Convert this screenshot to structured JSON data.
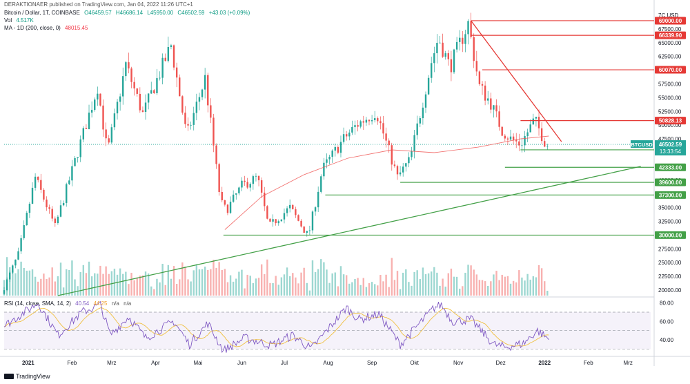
{
  "header": {
    "publisher": "DERAKTIONAER published on TradingView.com, Jan 04, 2022 11:26 UTC+1",
    "symbol_line": "Bitcoin / Dollar, 1T, COINBASE",
    "open": "O46459.57",
    "high": "H46686.14",
    "low": "L45950.00",
    "close": "C46502.59",
    "change": "+43.03 (+0.09%)",
    "vol_label": "Vol",
    "vol_value": "4.517K",
    "ma_label": "MA - 1D (200, close, 0)",
    "ma_value": "48015.45",
    "rsi_label": "RSI (14, close, SMA, 14, 2)",
    "rsi_value": "40.54",
    "rsi_sma": "44.25",
    "rsi_na1": "n/a",
    "rsi_na2": "n/a"
  },
  "footer": {
    "brand": "TradingView"
  },
  "colors": {
    "up": "#26a69a",
    "down": "#ef5350",
    "ma": "#ef5350",
    "resistance": "#e53935",
    "support": "#43a047",
    "rsi": "#7e57c2",
    "rsi_sma": "#f0c040"
  },
  "chart_data": {
    "type": "candlestick",
    "currency_label": "USD",
    "y_ticks": [
      20000,
      22500,
      25000,
      27500,
      30000,
      32500,
      35000,
      37500,
      40000,
      42500,
      45000,
      47500,
      50000,
      52500,
      55000,
      57500,
      60000,
      62500,
      65000,
      67500,
      70000
    ],
    "ylim": [
      19000,
      70000
    ],
    "x_ticks": [
      "2021",
      "Feb",
      "Mrz",
      "Apr",
      "Mai",
      "Jun",
      "Jul",
      "Aug",
      "Sep",
      "Okt",
      "Nov",
      "Dez",
      "2022",
      "Feb",
      "Mrz"
    ],
    "x_tick_dates": [
      "2021-01-01",
      "2021-02-01",
      "2021-03-01",
      "2021-04-01",
      "2021-05-01",
      "2021-06-01",
      "2021-07-01",
      "2021-08-01",
      "2021-09-01",
      "2021-10-01",
      "2021-11-01",
      "2021-12-01",
      "2022-01-01",
      "2022-02-01",
      "2022-03-01"
    ],
    "price_path": [
      {
        "date": "2020-12-15",
        "price": 19300
      },
      {
        "date": "2020-12-27",
        "price": 26500
      },
      {
        "date": "2021-01-08",
        "price": 40500
      },
      {
        "date": "2021-01-22",
        "price": 31500
      },
      {
        "date": "2021-02-08",
        "price": 46000
      },
      {
        "date": "2021-02-21",
        "price": 57000
      },
      {
        "date": "2021-02-28",
        "price": 45000
      },
      {
        "date": "2021-03-13",
        "price": 61000
      },
      {
        "date": "2021-03-25",
        "price": 52000
      },
      {
        "date": "2021-04-14",
        "price": 64500
      },
      {
        "date": "2021-04-25",
        "price": 48000
      },
      {
        "date": "2021-05-08",
        "price": 58500
      },
      {
        "date": "2021-05-19",
        "price": 36000
      },
      {
        "date": "2021-05-23",
        "price": 34500
      },
      {
        "date": "2021-06-03",
        "price": 39000
      },
      {
        "date": "2021-06-14",
        "price": 40500
      },
      {
        "date": "2021-06-22",
        "price": 31500
      },
      {
        "date": "2021-07-07",
        "price": 35000
      },
      {
        "date": "2021-07-20",
        "price": 29800
      },
      {
        "date": "2021-07-30",
        "price": 42000
      },
      {
        "date": "2021-08-14",
        "price": 47500
      },
      {
        "date": "2021-08-23",
        "price": 50000
      },
      {
        "date": "2021-09-06",
        "price": 52500
      },
      {
        "date": "2021-09-21",
        "price": 40500
      },
      {
        "date": "2021-09-30",
        "price": 43800
      },
      {
        "date": "2021-10-15",
        "price": 61500
      },
      {
        "date": "2021-10-20",
        "price": 66000
      },
      {
        "date": "2021-10-28",
        "price": 60500
      },
      {
        "date": "2021-11-10",
        "price": 68500
      },
      {
        "date": "2021-11-18",
        "price": 57000
      },
      {
        "date": "2021-11-26",
        "price": 54000
      },
      {
        "date": "2021-12-04",
        "price": 49000
      },
      {
        "date": "2021-12-10",
        "price": 47500
      },
      {
        "date": "2021-12-17",
        "price": 46500
      },
      {
        "date": "2021-12-27",
        "price": 51000
      },
      {
        "date": "2022-01-04",
        "price": 46500
      }
    ],
    "last_price": {
      "symbol": "BTCUSD",
      "value": "46502.59",
      "countdown": "13:33:54"
    },
    "moving_average_200": [
      {
        "date": "2021-05-20",
        "price": 31000
      },
      {
        "date": "2021-06-15",
        "price": 37000
      },
      {
        "date": "2021-07-15",
        "price": 41000
      },
      {
        "date": "2021-08-15",
        "price": 44000
      },
      {
        "date": "2021-09-15",
        "price": 45500
      },
      {
        "date": "2021-10-15",
        "price": 45000
      },
      {
        "date": "2021-11-15",
        "price": 46000
      },
      {
        "date": "2021-12-15",
        "price": 47500
      },
      {
        "date": "2022-01-04",
        "price": 48015
      }
    ],
    "horizontal_levels": [
      {
        "value": "69000.00",
        "price": 69000,
        "kind": "resistance",
        "start": "2021-11-10"
      },
      {
        "value": "66339.90",
        "price": 66339.9,
        "kind": "resistance",
        "start": "2021-11-10"
      },
      {
        "value": "60070.00",
        "price": 60070,
        "kind": "resistance",
        "start": "2021-11-18"
      },
      {
        "value": "50828.13",
        "price": 50828.13,
        "kind": "resistance",
        "start": "2021-12-15"
      },
      {
        "value": "45515.72",
        "price": 45515.72,
        "kind": "support",
        "start": "2021-12-15"
      },
      {
        "value": "42333.00",
        "price": 42333,
        "kind": "support",
        "start": "2021-12-04"
      },
      {
        "value": "39600.00",
        "price": 39600,
        "kind": "support",
        "start": "2021-09-21"
      },
      {
        "value": "37300.00",
        "price": 37300,
        "kind": "support",
        "start": "2021-07-30"
      },
      {
        "value": "30000.00",
        "price": 30000,
        "kind": "support",
        "start": "2021-05-19"
      }
    ],
    "trendlines": [
      {
        "kind": "resistance",
        "from": {
          "date": "2021-11-10",
          "price": 69000
        },
        "to": {
          "date": "2022-01-13",
          "price": 47000
        }
      },
      {
        "kind": "support",
        "from": {
          "date": "2021-01-22",
          "price": 19000
        },
        "to": {
          "date": "2022-03-10",
          "price": 42500
        }
      }
    ],
    "rsi": {
      "y_ticks": [
        40,
        60,
        80
      ],
      "ylim": [
        25,
        85
      ],
      "upper_band": 70,
      "lower_band": 30,
      "path": [
        {
          "date": "2020-12-15",
          "v": 55
        },
        {
          "date": "2021-01-08",
          "v": 80
        },
        {
          "date": "2021-01-22",
          "v": 45
        },
        {
          "date": "2021-02-08",
          "v": 70
        },
        {
          "date": "2021-02-21",
          "v": 78
        },
        {
          "date": "2021-02-28",
          "v": 45
        },
        {
          "date": "2021-03-13",
          "v": 65
        },
        {
          "date": "2021-03-25",
          "v": 42
        },
        {
          "date": "2021-04-14",
          "v": 60
        },
        {
          "date": "2021-04-25",
          "v": 35
        },
        {
          "date": "2021-05-08",
          "v": 58
        },
        {
          "date": "2021-05-19",
          "v": 28
        },
        {
          "date": "2021-06-03",
          "v": 42
        },
        {
          "date": "2021-06-22",
          "v": 34
        },
        {
          "date": "2021-07-07",
          "v": 45
        },
        {
          "date": "2021-07-20",
          "v": 30
        },
        {
          "date": "2021-08-14",
          "v": 75
        },
        {
          "date": "2021-08-23",
          "v": 62
        },
        {
          "date": "2021-09-06",
          "v": 68
        },
        {
          "date": "2021-09-21",
          "v": 35
        },
        {
          "date": "2021-10-15",
          "v": 75
        },
        {
          "date": "2021-10-20",
          "v": 78
        },
        {
          "date": "2021-10-28",
          "v": 60
        },
        {
          "date": "2021-11-10",
          "v": 62
        },
        {
          "date": "2021-11-26",
          "v": 35
        },
        {
          "date": "2021-12-04",
          "v": 32
        },
        {
          "date": "2021-12-17",
          "v": 36
        },
        {
          "date": "2021-12-27",
          "v": 50
        },
        {
          "date": "2022-01-04",
          "v": 40.5
        }
      ]
    }
  }
}
